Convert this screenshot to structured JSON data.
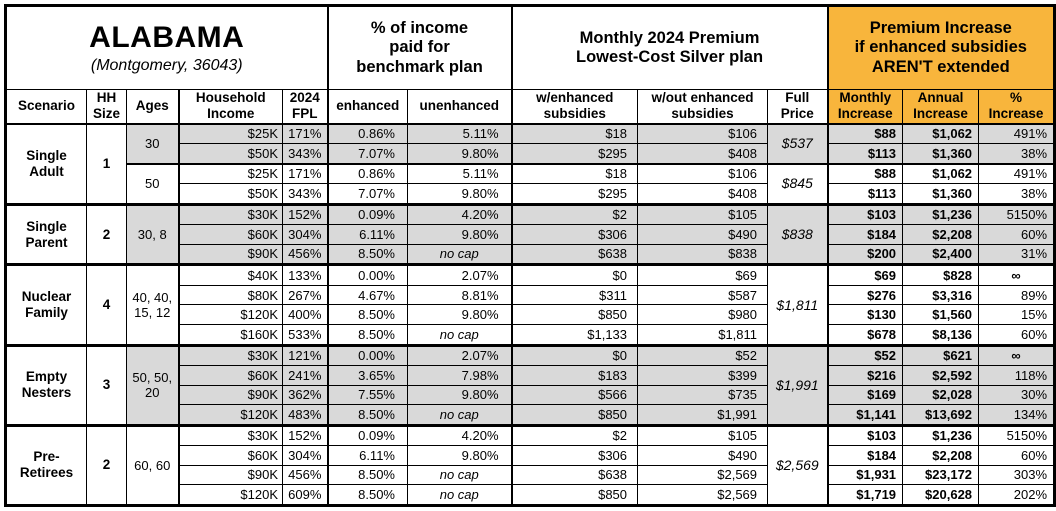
{
  "title": "ALABAMA",
  "subtitle": "(Montgomery, 36043)",
  "colors": {
    "accent_orange": "#F8B53C",
    "band_gray": "#D9D9D9"
  },
  "header_groups": {
    "income_pct": "% of income\npaid for\nbenchmark plan",
    "premium": "Monthly 2024 Premium\nLowest-Cost Silver plan",
    "increase": "Premium Increase\nif enhanced subsidies\nAREN'T extended"
  },
  "columns": [
    "Scenario",
    "HH\nSize",
    "Ages",
    "Household\nIncome",
    "2024\nFPL",
    "enhanced",
    "unenhanced",
    "w/enhanced\nsubsidies",
    "w/out enhanced\nsubsidies",
    "Full\nPrice",
    "Monthly\nIncrease",
    "Annual\nIncrease",
    "%\nIncrease"
  ],
  "groups": [
    {
      "scenario": "Single\nAdult",
      "hh_size": "1",
      "age_blocks": [
        {
          "ages": "30",
          "shaded": true,
          "full_price": "$537",
          "rows": [
            {
              "income": "$25K",
              "fpl": "171%",
              "enhanced": "0.86%",
              "unenhanced": "5.11%",
              "w_enh": "$18",
              "wo_enh": "$106",
              "monthly": "$88",
              "annual": "$1,062",
              "pct": "491%"
            },
            {
              "income": "$50K",
              "fpl": "343%",
              "enhanced": "7.07%",
              "unenhanced": "9.80%",
              "w_enh": "$295",
              "wo_enh": "$408",
              "monthly": "$113",
              "annual": "$1,360",
              "pct": "38%"
            }
          ]
        },
        {
          "ages": "50",
          "shaded": false,
          "full_price": "$845",
          "rows": [
            {
              "income": "$25K",
              "fpl": "171%",
              "enhanced": "0.86%",
              "unenhanced": "5.11%",
              "w_enh": "$18",
              "wo_enh": "$106",
              "monthly": "$88",
              "annual": "$1,062",
              "pct": "491%"
            },
            {
              "income": "$50K",
              "fpl": "343%",
              "enhanced": "7.07%",
              "unenhanced": "9.80%",
              "w_enh": "$295",
              "wo_enh": "$408",
              "monthly": "$113",
              "annual": "$1,360",
              "pct": "38%"
            }
          ]
        }
      ]
    },
    {
      "scenario": "Single\nParent",
      "hh_size": "2",
      "age_blocks": [
        {
          "ages": "30, 8",
          "shaded": true,
          "full_price": "$838",
          "rows": [
            {
              "income": "$30K",
              "fpl": "152%",
              "enhanced": "0.09%",
              "unenhanced": "4.20%",
              "w_enh": "$2",
              "wo_enh": "$105",
              "monthly": "$103",
              "annual": "$1,236",
              "pct": "5150%"
            },
            {
              "income": "$60K",
              "fpl": "304%",
              "enhanced": "6.11%",
              "unenhanced": "9.80%",
              "w_enh": "$306",
              "wo_enh": "$490",
              "monthly": "$184",
              "annual": "$2,208",
              "pct": "60%"
            },
            {
              "income": "$90K",
              "fpl": "456%",
              "enhanced": "8.50%",
              "unenhanced": "no cap",
              "w_enh": "$638",
              "wo_enh": "$838",
              "monthly": "$200",
              "annual": "$2,400",
              "pct": "31%"
            }
          ]
        }
      ]
    },
    {
      "scenario": "Nuclear\nFamily",
      "hh_size": "4",
      "age_blocks": [
        {
          "ages": "40, 40,\n15, 12",
          "shaded": false,
          "full_price": "$1,811",
          "rows": [
            {
              "income": "$40K",
              "fpl": "133%",
              "enhanced": "0.00%",
              "unenhanced": "2.07%",
              "w_enh": "$0",
              "wo_enh": "$69",
              "monthly": "$69",
              "annual": "$828",
              "pct": "∞"
            },
            {
              "income": "$80K",
              "fpl": "267%",
              "enhanced": "4.67%",
              "unenhanced": "8.81%",
              "w_enh": "$311",
              "wo_enh": "$587",
              "monthly": "$276",
              "annual": "$3,316",
              "pct": "89%"
            },
            {
              "income": "$120K",
              "fpl": "400%",
              "enhanced": "8.50%",
              "unenhanced": "9.80%",
              "w_enh": "$850",
              "wo_enh": "$980",
              "monthly": "$130",
              "annual": "$1,560",
              "pct": "15%"
            },
            {
              "income": "$160K",
              "fpl": "533%",
              "enhanced": "8.50%",
              "unenhanced": "no cap",
              "w_enh": "$1,133",
              "wo_enh": "$1,811",
              "monthly": "$678",
              "annual": "$8,136",
              "pct": "60%"
            }
          ]
        }
      ]
    },
    {
      "scenario": "Empty\nNesters",
      "hh_size": "3",
      "age_blocks": [
        {
          "ages": "50, 50,\n20",
          "shaded": true,
          "full_price": "$1,991",
          "rows": [
            {
              "income": "$30K",
              "fpl": "121%",
              "enhanced": "0.00%",
              "unenhanced": "2.07%",
              "w_enh": "$0",
              "wo_enh": "$52",
              "monthly": "$52",
              "annual": "$621",
              "pct": "∞"
            },
            {
              "income": "$60K",
              "fpl": "241%",
              "enhanced": "3.65%",
              "unenhanced": "7.98%",
              "w_enh": "$183",
              "wo_enh": "$399",
              "monthly": "$216",
              "annual": "$2,592",
              "pct": "118%"
            },
            {
              "income": "$90K",
              "fpl": "362%",
              "enhanced": "7.55%",
              "unenhanced": "9.80%",
              "w_enh": "$566",
              "wo_enh": "$735",
              "monthly": "$169",
              "annual": "$2,028",
              "pct": "30%"
            },
            {
              "income": "$120K",
              "fpl": "483%",
              "enhanced": "8.50%",
              "unenhanced": "no cap",
              "w_enh": "$850",
              "wo_enh": "$1,991",
              "monthly": "$1,141",
              "annual": "$13,692",
              "pct": "134%"
            }
          ]
        }
      ]
    },
    {
      "scenario": "Pre-\nRetirees",
      "hh_size": "2",
      "age_blocks": [
        {
          "ages": "60, 60",
          "shaded": false,
          "full_price": "$2,569",
          "rows": [
            {
              "income": "$30K",
              "fpl": "152%",
              "enhanced": "0.09%",
              "unenhanced": "4.20%",
              "w_enh": "$2",
              "wo_enh": "$105",
              "monthly": "$103",
              "annual": "$1,236",
              "pct": "5150%"
            },
            {
              "income": "$60K",
              "fpl": "304%",
              "enhanced": "6.11%",
              "unenhanced": "9.80%",
              "w_enh": "$306",
              "wo_enh": "$490",
              "monthly": "$184",
              "annual": "$2,208",
              "pct": "60%"
            },
            {
              "income": "$90K",
              "fpl": "456%",
              "enhanced": "8.50%",
              "unenhanced": "no cap",
              "w_enh": "$638",
              "wo_enh": "$2,569",
              "monthly": "$1,931",
              "annual": "$23,172",
              "pct": "303%"
            },
            {
              "income": "$120K",
              "fpl": "609%",
              "enhanced": "8.50%",
              "unenhanced": "no cap",
              "w_enh": "$850",
              "wo_enh": "$2,569",
              "monthly": "$1,719",
              "annual": "$20,628",
              "pct": "202%"
            }
          ]
        }
      ]
    }
  ]
}
